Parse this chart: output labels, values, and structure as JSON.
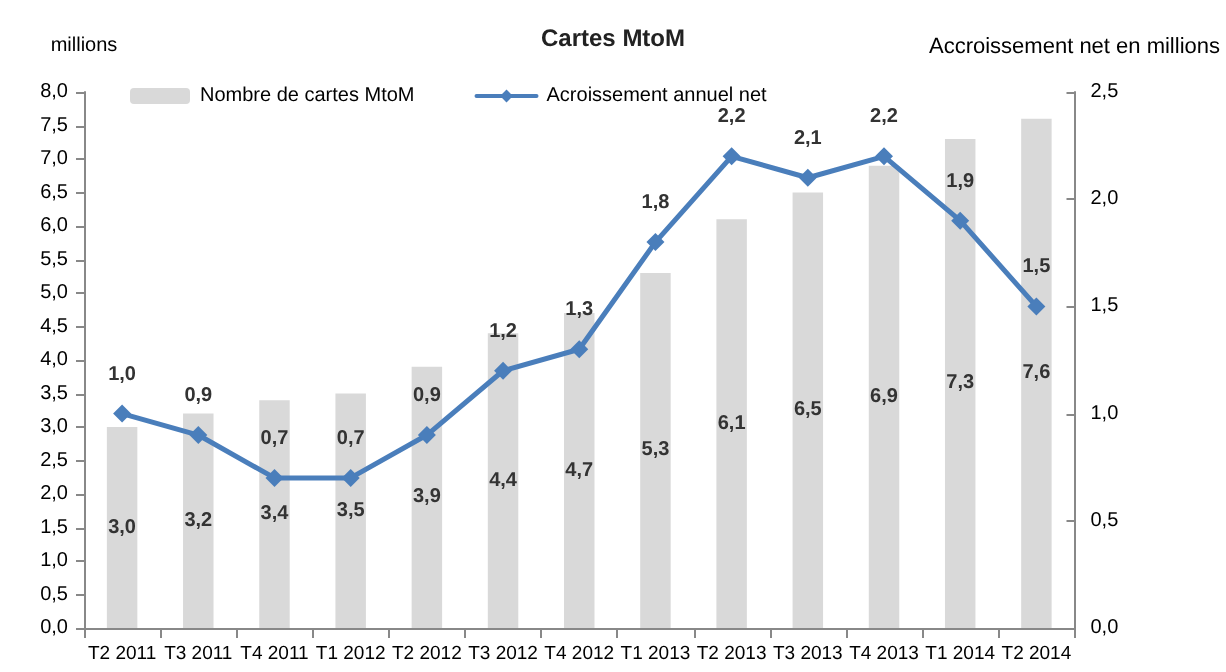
{
  "chart_data": {
    "type": "bar",
    "title": "Cartes MtoM",
    "ylabel": "millions",
    "y2label": "Accroissement net en millions",
    "categories": [
      "T2 2011",
      "T3 2011",
      "T4 2011",
      "T1 2012",
      "T2 2012",
      "T3 2012",
      "T4 2012",
      "T1 2013",
      "T2 2013",
      "T3 2013",
      "T4 2013",
      "T1 2014",
      "T2 2014"
    ],
    "series": [
      {
        "name": "Nombre de cartes MtoM",
        "color": "#d9d9d9",
        "values": [
          3.0,
          3.2,
          3.4,
          3.5,
          3.9,
          4.4,
          4.7,
          5.3,
          6.1,
          6.5,
          6.9,
          7.3,
          7.6
        ],
        "value_labels": [
          "3,0",
          "3,2",
          "3,4",
          "3,5",
          "3,9",
          "4,4",
          "4,7",
          "5,3",
          "6,1",
          "6,5",
          "6,9",
          "7,3",
          "7,6"
        ]
      },
      {
        "name": "Acroissement annuel net",
        "type": "line",
        "axis": "y2",
        "color": "#4a7ebb",
        "marker": "diamond",
        "values": [
          1.0,
          0.9,
          0.7,
          0.7,
          0.9,
          1.2,
          1.3,
          1.8,
          2.2,
          2.1,
          2.2,
          1.9,
          1.5
        ],
        "value_labels": [
          "1,0",
          "0,9",
          "0,7",
          "0,7",
          "0,9",
          "1,2",
          "1,3",
          "1,8",
          "2,2",
          "2,1",
          "2,2",
          "1,9",
          "1,5"
        ]
      }
    ],
    "ylim": [
      0,
      8
    ],
    "yticks": [
      {
        "value": 0,
        "label": "0,0"
      },
      {
        "value": 0.5,
        "label": "0,5"
      },
      {
        "value": 1,
        "label": "1,0"
      },
      {
        "value": 1.5,
        "label": "1,5"
      },
      {
        "value": 2,
        "label": "2,0"
      },
      {
        "value": 2.5,
        "label": "2,5"
      },
      {
        "value": 3,
        "label": "3,0"
      },
      {
        "value": 3.5,
        "label": "3,5"
      },
      {
        "value": 4,
        "label": "4,0"
      },
      {
        "value": 4.5,
        "label": "4,5"
      },
      {
        "value": 5,
        "label": "5,0"
      },
      {
        "value": 5.5,
        "label": "5,5"
      },
      {
        "value": 6,
        "label": "6,0"
      },
      {
        "value": 6.5,
        "label": "6,5"
      },
      {
        "value": 7,
        "label": "7,0"
      },
      {
        "value": 7.5,
        "label": "7,5"
      },
      {
        "value": 8,
        "label": "8,0"
      }
    ],
    "y2lim": [
      0,
      2.5
    ],
    "y2ticks": [
      {
        "value": 0,
        "label": "0,0"
      },
      {
        "value": 0.5,
        "label": "0,5"
      },
      {
        "value": 1,
        "label": "1,0"
      },
      {
        "value": 1.5,
        "label": "1,5"
      },
      {
        "value": 2,
        "label": "2,0"
      },
      {
        "value": 2.5,
        "label": "2,5"
      }
    ],
    "grid": false,
    "legend": "top left"
  }
}
